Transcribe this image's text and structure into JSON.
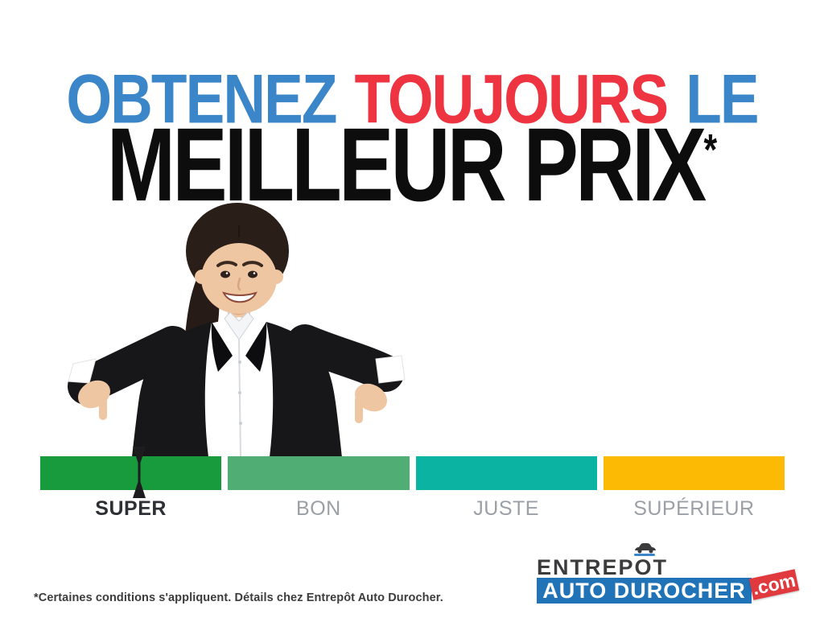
{
  "headline": {
    "line1": {
      "words": [
        {
          "text": "OBTENEZ",
          "color": "#3a86c9"
        },
        {
          "text": "TOUJOURS",
          "color": "#ee3440"
        },
        {
          "text": "LE",
          "color": "#3a86c9"
        }
      ]
    },
    "line2": {
      "text": "MEILLEUR PRIX",
      "asterisk": "*",
      "color": "#0d0d0d"
    }
  },
  "photo": {
    "description": "businesswoman in black suit smiling and pointing down with both hands"
  },
  "price_gauge": {
    "segments": [
      {
        "label": "SUPER",
        "color": "#179b3d",
        "label_color": "#2c2f34",
        "active": true
      },
      {
        "label": "BON",
        "color": "#50ad74",
        "label_color": "#9aa0a6",
        "active": false
      },
      {
        "label": "JUSTE",
        "color": "#0bb3a3",
        "label_color": "#9aa0a6",
        "active": false
      },
      {
        "label": "SUPÉRIEUR",
        "color": "#fcba05",
        "label_color": "#9aa0a6",
        "active": false
      }
    ],
    "marker": {
      "on_segment": "SUPER",
      "position_pct": 55,
      "color": "#1d1d1f"
    }
  },
  "logo": {
    "top_text": "ENTREPOT",
    "bottom_text": "AUTO DUROCHER",
    "tld": ".com",
    "top_color": "#3b3b3d",
    "bar_color": "#2173b8",
    "tld_bg": "#e03a3e"
  },
  "disclaimer": "*Certaines conditions s'appliquent. Détails chez Entrepôt Auto Durocher."
}
